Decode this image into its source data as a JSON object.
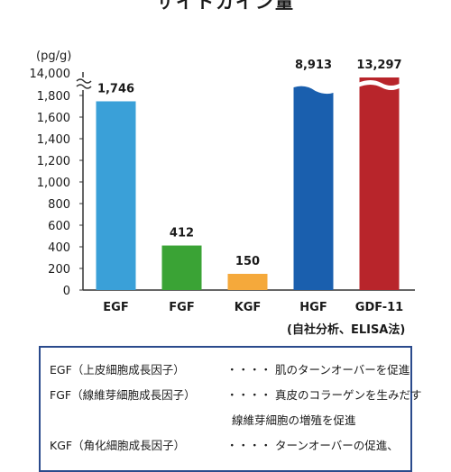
{
  "page": {
    "title_cut": "サイトカイン量",
    "source_note": "(自社分析、ELISA法)"
  },
  "chart_data": {
    "type": "bar",
    "unit_label": "(pg/g)",
    "categories": [
      "EGF",
      "FGF",
      "KGF",
      "HGF",
      "GDF-11"
    ],
    "values": [
      1746,
      412,
      150,
      8913,
      13297
    ],
    "value_labels": [
      "1,746",
      "412",
      "150",
      "8,913",
      "13,297"
    ],
    "colors": [
      "#3aa0d8",
      "#3aa335",
      "#f5a93b",
      "#1a5fae",
      "#b8252b"
    ],
    "broken_axis": {
      "lower_max": 1800,
      "upper_label": "14,000"
    },
    "y_ticks": [
      "0",
      "200",
      "400",
      "600",
      "800",
      "1,000",
      "1,200",
      "1,400",
      "1,600",
      "1,800"
    ],
    "y_tick_values": [
      0,
      200,
      400,
      600,
      800,
      1000,
      1200,
      1400,
      1600,
      1800
    ],
    "ylim": [
      0,
      1800
    ],
    "grid": false
  },
  "legend": {
    "rows": [
      {
        "term": "EGF（上皮細胞成長因子）",
        "dots": "・・・・",
        "desc": "肌のターンオーバーを促進"
      },
      {
        "term": "FGF（線維芽細胞成長因子）",
        "dots": "・・・・",
        "desc": "真皮のコラーゲンを生みだす"
      },
      {
        "term": "",
        "dots": "",
        "desc": "線維芽細胞の増殖を促進"
      },
      {
        "term": "KGF（角化細胞成長因子）",
        "dots": "・・・・",
        "desc": "ターンオーバーの促進、"
      }
    ]
  },
  "colors": {
    "legend_border": "#2a4a8c",
    "axis": "#333333"
  }
}
